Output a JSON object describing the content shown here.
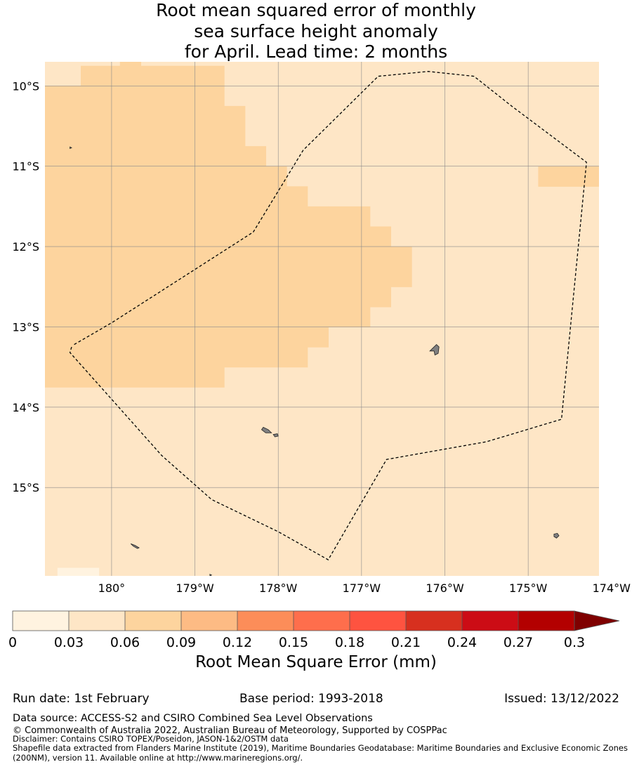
{
  "title": {
    "line1": "Root mean squared error of monthly",
    "line2": "sea surface height anomaly",
    "line3": "for April. Lead time: 2 months"
  },
  "map": {
    "lon_range": [
      179.2,
      185.85
    ],
    "lat_range": [
      -16.1,
      -9.7
    ],
    "lat_ticks": [
      {
        "value": -10,
        "label": "10°S"
      },
      {
        "value": -11,
        "label": "11°S"
      },
      {
        "value": -12,
        "label": "12°S"
      },
      {
        "value": -13,
        "label": "13°S"
      },
      {
        "value": -14,
        "label": "14°S"
      },
      {
        "value": -15,
        "label": "15°S"
      }
    ],
    "lon_ticks": [
      {
        "value": 180,
        "label": "180°"
      },
      {
        "value": 181,
        "label": "179°W"
      },
      {
        "value": 182,
        "label": "178°W"
      },
      {
        "value": 183,
        "label": "177°W"
      },
      {
        "value": 184,
        "label": "176°W"
      },
      {
        "value": 185,
        "label": "175°W"
      },
      {
        "value": 186,
        "label": "174°W"
      }
    ],
    "background_level_color": "#fee6c6",
    "elevated_level_color": "#fdd49e",
    "elevated_regions": [
      {
        "lon": [
          179.2,
          180.05
        ],
        "lat": [
          -13.75,
          -10.0
        ]
      },
      {
        "lon": [
          179.63,
          181.35
        ],
        "lat": [
          -10.0,
          -9.75
        ]
      },
      {
        "lon": [
          180.05,
          181.35
        ],
        "lat": [
          -13.75,
          -10.0
        ]
      },
      {
        "lon": [
          180.1,
          180.35
        ],
        "lat": [
          -9.75,
          -9.7
        ]
      },
      {
        "lon": [
          181.35,
          181.6
        ],
        "lat": [
          -13.5,
          -10.25
        ]
      },
      {
        "lon": [
          181.6,
          181.85
        ],
        "lat": [
          -13.5,
          -10.75
        ]
      },
      {
        "lon": [
          181.85,
          182.1
        ],
        "lat": [
          -13.5,
          -11.0
        ]
      },
      {
        "lon": [
          182.1,
          182.35
        ],
        "lat": [
          -13.5,
          -11.25
        ]
      },
      {
        "lon": [
          182.35,
          182.6
        ],
        "lat": [
          -13.25,
          -11.5
        ]
      },
      {
        "lon": [
          182.6,
          183.1
        ],
        "lat": [
          -13.0,
          -11.5
        ]
      },
      {
        "lon": [
          183.1,
          183.35
        ],
        "lat": [
          -12.75,
          -11.75
        ]
      },
      {
        "lon": [
          183.35,
          183.6
        ],
        "lat": [
          -12.5,
          -12.0
        ]
      },
      {
        "lon": [
          185.12,
          185.85
        ],
        "lat": [
          -11.25,
          -11.0
        ]
      }
    ],
    "light_regions": [
      {
        "lon": [
          179.35,
          179.85
        ],
        "lat": [
          -16.1,
          -16.0
        ]
      }
    ],
    "eez_boundary": [
      [
        179.52,
        -13.25
      ],
      [
        179.5,
        -13.32
      ],
      [
        180.0,
        -13.9
      ],
      [
        180.6,
        -14.6
      ],
      [
        181.2,
        -15.15
      ],
      [
        182.0,
        -15.55
      ],
      [
        182.6,
        -15.9
      ],
      [
        183.3,
        -14.65
      ],
      [
        184.5,
        -14.43
      ],
      [
        185.4,
        -14.15
      ],
      [
        185.7,
        -10.95
      ],
      [
        184.8,
        -10.25
      ],
      [
        184.35,
        -9.88
      ],
      [
        183.8,
        -9.82
      ],
      [
        183.2,
        -9.88
      ],
      [
        182.3,
        -10.8
      ],
      [
        181.7,
        -11.82
      ],
      [
        180.0,
        -12.95
      ],
      [
        179.55,
        -13.22
      ]
    ],
    "islands": [
      {
        "name": "atafu",
        "points": [
          [
            183.85,
            -13.27
          ],
          [
            183.9,
            -13.22
          ],
          [
            183.93,
            -13.25
          ],
          [
            183.92,
            -13.33
          ],
          [
            183.88,
            -13.35
          ],
          [
            183.87,
            -13.3
          ],
          [
            183.82,
            -13.3
          ]
        ]
      },
      {
        "name": "nukunonu",
        "points": [
          [
            181.82,
            -14.25
          ],
          [
            181.88,
            -14.28
          ],
          [
            181.92,
            -14.32
          ],
          [
            181.85,
            -14.32
          ],
          [
            181.8,
            -14.28
          ]
        ]
      },
      {
        "name": "nukunonu-islet",
        "points": [
          [
            181.94,
            -14.34
          ],
          [
            181.99,
            -14.33
          ],
          [
            182.0,
            -14.36
          ],
          [
            181.96,
            -14.37
          ]
        ]
      },
      {
        "name": "fakaofo",
        "points": [
          [
            185.31,
            -15.58
          ],
          [
            185.35,
            -15.57
          ],
          [
            185.37,
            -15.6
          ],
          [
            185.34,
            -15.63
          ],
          [
            185.31,
            -15.61
          ]
        ]
      },
      {
        "name": "reef",
        "points": [
          [
            180.23,
            -15.7
          ],
          [
            180.28,
            -15.72
          ],
          [
            180.33,
            -15.75
          ],
          [
            180.31,
            -15.76
          ],
          [
            180.26,
            -15.73
          ]
        ]
      },
      {
        "name": "islet",
        "points": [
          [
            179.5,
            -10.76
          ],
          [
            179.52,
            -10.77
          ],
          [
            179.5,
            -10.78
          ]
        ]
      },
      {
        "name": "dot",
        "points": [
          [
            181.18,
            -16.08
          ],
          [
            181.2,
            -16.09
          ],
          [
            181.18,
            -16.1
          ]
        ]
      }
    ]
  },
  "colorbar": {
    "boundaries": [
      0,
      0.03,
      0.06,
      0.09,
      0.12,
      0.15,
      0.18,
      0.21,
      0.24,
      0.27,
      0.3
    ],
    "tick_labels": [
      "0",
      "0.03",
      "0.06",
      "0.09",
      "0.12",
      "0.15",
      "0.18",
      "0.21",
      "0.24",
      "0.27",
      "0.3"
    ],
    "colors": [
      "#fff3e0",
      "#fee6c6",
      "#fdd49e",
      "#fdbb84",
      "#fc8d59",
      "#fe6e4c",
      "#fe5340",
      "#d7301f",
      "#cc0c15",
      "#b30000"
    ],
    "extend_color": "#7f0000",
    "label": "Root Mean Square Error (mm)"
  },
  "footer": {
    "run_date": "Run date: 1st February",
    "base_period": "Base period: 1993-2018",
    "issued": "Issued: 13/12/2022",
    "data_source": "Data source: ACCESS-S2 and CSIRO Combined Sea Level Observations",
    "copyright": "© Commonwealth of Australia 2022, Australian Bureau of Meteorology, Supported by COSPPac",
    "disclaimer": "Disclaimer: Contains CSIRO TOPEX/Poseidon, JASON-1&2/OSTM data",
    "shapefile": "Shapefile data extracted from Flanders Marine Institute (2019), Maritime Boundaries Geodatabase: Maritime Boundaries and Exclusive Economic Zones (200NM), version 11. Available online at http://www.marineregions.org/."
  }
}
